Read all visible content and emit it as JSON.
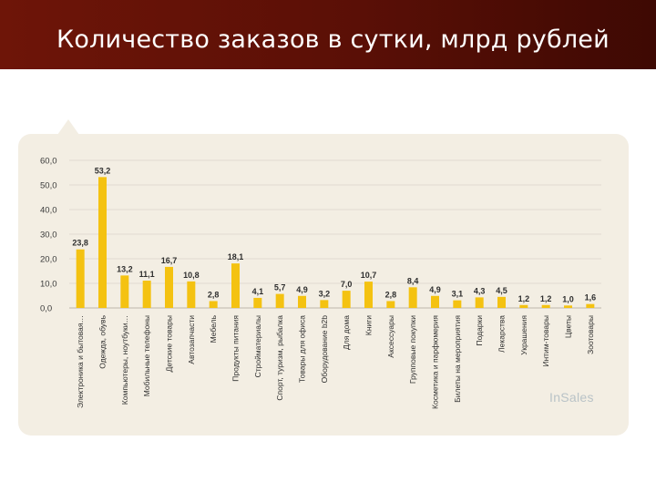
{
  "header": {
    "title": "Количество заказов в сутки, млрд рублей"
  },
  "colors": {
    "header": "#5a0f06",
    "bar": "#f4c211",
    "panel": "#f3eee3"
  },
  "logo": {
    "text": "InSales"
  },
  "chart_data": {
    "type": "bar",
    "title": "",
    "xlabel": "",
    "ylabel": "",
    "ylim": [
      0,
      60
    ],
    "yticks": [
      "0,0",
      "10,0",
      "20,0",
      "30,0",
      "40,0",
      "50,0",
      "60,0"
    ],
    "grid": true,
    "categories": [
      "Электроника и бытовая…",
      "Одежда, обувь",
      "Компьютеры, ноутбуки…",
      "Мобильные телефоны",
      "Детские товары",
      "Автозапчасти",
      "Мебель",
      "Продукты питания",
      "Стройматериалы",
      "Спорт, туризм, рыбалка",
      "Товары для офиса",
      "Оборудование b2b",
      "Для дома",
      "Книги",
      "Аксессуары",
      "Групповые покупки",
      "Косметика и парфюмерия",
      "Билеты на мероприятия",
      "Подарки",
      "Лекарства",
      "Украшения",
      "Интим-товары",
      "Цветы",
      "Зоотовары"
    ],
    "values": [
      23.8,
      53.2,
      13.2,
      11.1,
      16.7,
      10.8,
      2.8,
      18.1,
      4.1,
      5.7,
      4.9,
      3.2,
      7.0,
      10.7,
      2.8,
      8.4,
      4.9,
      3.1,
      4.3,
      4.5,
      1.2,
      1.2,
      1.0,
      1.6
    ],
    "labels": [
      "23,8",
      "53,2",
      "13,2",
      "11,1",
      "16,7",
      "10,8",
      "2,8",
      "18,1",
      "4,1",
      "5,7",
      "4,9",
      "3,2",
      "7,0",
      "10,7",
      "2,8",
      "8,4",
      "4,9",
      "3,1",
      "4,3",
      "4,5",
      "1,2",
      "1,2",
      "1,0",
      "1,6"
    ]
  }
}
